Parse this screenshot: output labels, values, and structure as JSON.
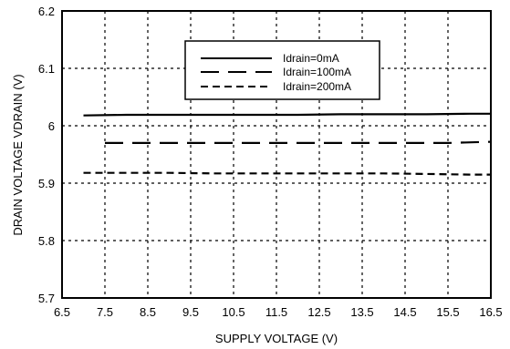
{
  "chart_data": {
    "type": "line",
    "title": "",
    "xlabel": "SUPPLY VOLTAGE (V)",
    "ylabel": "DRAIN VOLTAGE VDRAIN (V)",
    "xlim": [
      6.5,
      16.5
    ],
    "ylim": [
      5.7,
      6.2
    ],
    "xticks": [
      6.5,
      7.5,
      8.5,
      9.5,
      10.5,
      11.5,
      12.5,
      13.5,
      14.5,
      15.5,
      16.5
    ],
    "xtick_labels": [
      "6.5",
      "7.5",
      "8.5",
      "9.5",
      "10.5",
      "11.5",
      "12.5",
      "13.5",
      "14.5",
      "15.5",
      "16.5"
    ],
    "yticks": [
      5.7,
      5.8,
      5.9,
      6.0,
      6.1,
      6.2
    ],
    "ytick_labels": [
      "5.7",
      "5.8",
      "5.9",
      "6",
      "6.1",
      "6.2"
    ],
    "grid": true,
    "legend_position": "top-right",
    "series": [
      {
        "name": "Idrain=0mA",
        "style": "solid",
        "x": [
          7.0,
          8.0,
          9.0,
          10.0,
          11.0,
          12.0,
          13.0,
          14.0,
          15.0,
          16.0,
          16.5
        ],
        "y": [
          6.018,
          6.019,
          6.019,
          6.019,
          6.019,
          6.019,
          6.02,
          6.02,
          6.02,
          6.021,
          6.021
        ]
      },
      {
        "name": "Idrain=100mA",
        "style": "long-dash",
        "x": [
          7.5,
          8.5,
          9.5,
          10.5,
          11.5,
          12.5,
          13.5,
          14.5,
          15.5,
          16.5
        ],
        "y": [
          5.97,
          5.97,
          5.97,
          5.97,
          5.97,
          5.97,
          5.97,
          5.97,
          5.97,
          5.972
        ]
      },
      {
        "name": "Idrain=200mA",
        "style": "short-dash",
        "x": [
          7.0,
          8.0,
          9.0,
          10.0,
          11.0,
          12.0,
          13.0,
          14.0,
          15.0,
          16.0,
          16.5
        ],
        "y": [
          5.918,
          5.918,
          5.918,
          5.917,
          5.917,
          5.917,
          5.917,
          5.917,
          5.916,
          5.915,
          5.915
        ]
      }
    ],
    "colors": {
      "line": "#000000",
      "grid": "#000000",
      "background": "#ffffff"
    }
  }
}
